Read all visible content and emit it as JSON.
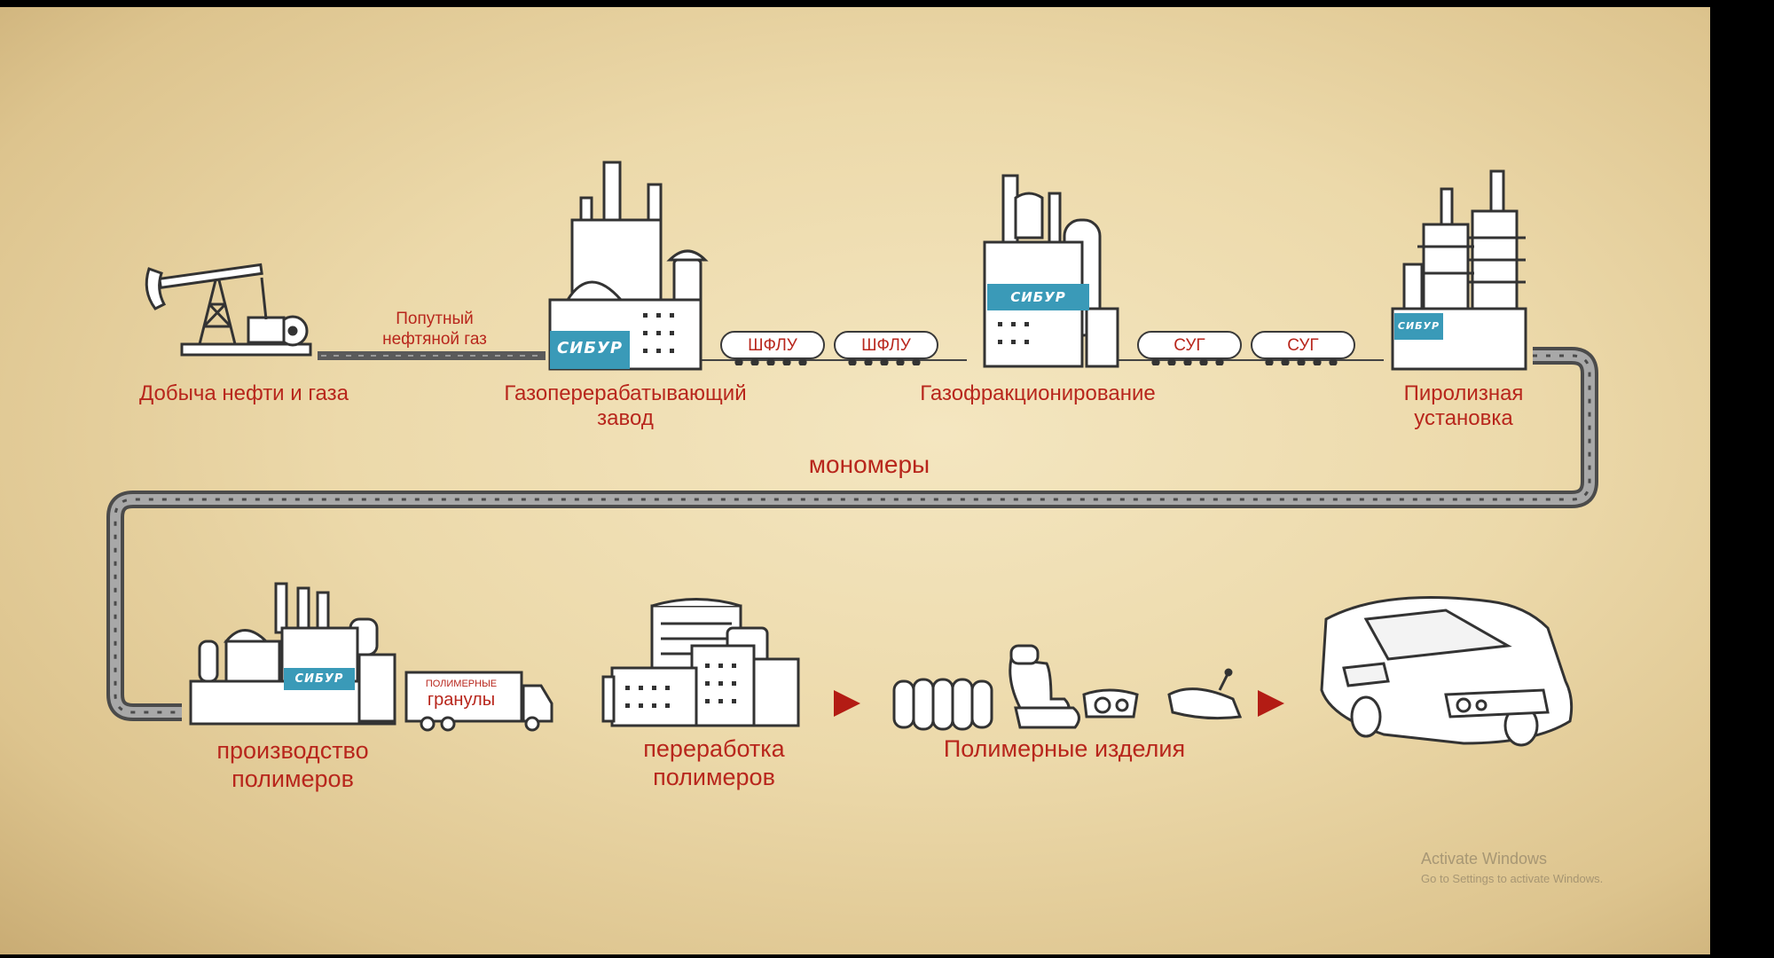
{
  "labels": {
    "extraction": "Добыча нефти и газа",
    "associated_gas_line1": "Попутный",
    "associated_gas_line2": "нефтяной газ",
    "gpz_line1": "Газоперерабатывающий",
    "gpz_line2": "завод",
    "gas_fractionation": "Газофракционирование",
    "pyrolysis_line1": "Пиролизная",
    "pyrolysis_line2": "установка",
    "monomers": "мономеры",
    "polymer_prod_line1": "производство",
    "polymer_prod_line2": "полимеров",
    "polymer_proc_line1": "переработка",
    "polymer_proc_line2": "полимеров",
    "polymer_products": "Полимерные изделия"
  },
  "tanks": {
    "ngl_1": "ШФЛУ",
    "ngl_2": "ШФЛУ",
    "lpg_1": "СУГ",
    "lpg_2": "СУГ"
  },
  "logo_text": "СИБУР",
  "truck": {
    "line1": "ПОЛИМЕРНЫЕ",
    "line2": "гранулы"
  },
  "watermark": {
    "title": "Activate Windows",
    "subtitle": "Go to Settings to activate Windows."
  },
  "colors": {
    "label_red": "#b8261c",
    "logo_blue": "#3a9ab8",
    "pipe_gray": "#555555",
    "arrow_red": "#b31c14",
    "background": "#ecd9aa"
  },
  "icons": [
    "oil-pump-icon",
    "gas-plant-icon",
    "tank-car-icon",
    "fractionation-plant-icon",
    "pyrolysis-plant-icon",
    "polymer-plant-icon",
    "truck-icon",
    "processing-plant-icon",
    "tires-icon",
    "car-seat-icon",
    "headlight-icon",
    "mirror-icon",
    "car-icon"
  ]
}
